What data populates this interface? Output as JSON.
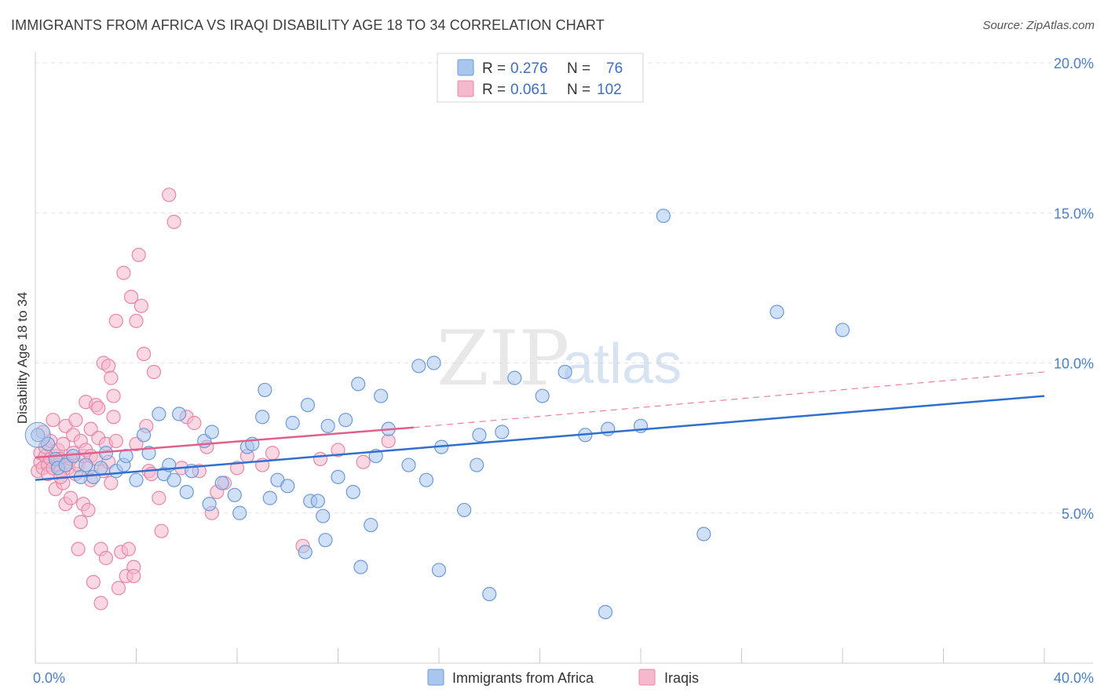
{
  "header": {
    "title": "IMMIGRANTS FROM AFRICA VS IRAQI DISABILITY AGE 18 TO 34 CORRELATION CHART",
    "source": "Source: ZipAtlas.com"
  },
  "watermark": {
    "zip": "ZIP",
    "atlas": "atlas"
  },
  "legend_top": {
    "rows": [
      {
        "r_label": "R =",
        "r_value": "0.276",
        "n_label": "N =",
        "n_value": "76"
      },
      {
        "r_label": "R =",
        "r_value": "0.061",
        "n_label": "N =",
        "n_value": "102"
      }
    ]
  },
  "colors": {
    "blue_fill": "#a9c6ee",
    "blue_stroke": "#6c9ad8",
    "blue_line": "#2f6fcf",
    "pink_fill": "#f6b8cc",
    "pink_stroke": "#e986a6",
    "pink_line": "#e0608c",
    "grid": "#e3e3e3",
    "axis_text": "#4a7ec9"
  },
  "chart_data": {
    "type": "scatter",
    "xlabel": "",
    "ylabel": "Disability Age 18 to 34",
    "xlim": [
      0,
      40
    ],
    "ylim": [
      0,
      20
    ],
    "x_tick_labels": [
      "0.0%",
      "40.0%"
    ],
    "y_ticks": [
      5,
      10,
      15,
      20
    ],
    "y_tick_labels": [
      "5.0%",
      "10.0%",
      "15.0%",
      "20.0%"
    ],
    "grid": "horizontal dashed",
    "legend_placement": "top-center and bottom",
    "series": [
      {
        "name": "Immigrants from Africa",
        "color": "blue",
        "trend": {
          "x": [
            0,
            40
          ],
          "y": [
            6.1,
            8.9
          ],
          "style": "solid"
        },
        "points": [
          [
            0.1,
            7.6
          ],
          [
            0.5,
            7.3
          ],
          [
            0.8,
            6.8
          ],
          [
            0.9,
            6.5
          ],
          [
            1.2,
            6.6
          ],
          [
            1.5,
            6.9
          ],
          [
            1.8,
            6.2
          ],
          [
            2.0,
            6.6
          ],
          [
            2.3,
            6.2
          ],
          [
            2.6,
            6.5
          ],
          [
            2.8,
            7.0
          ],
          [
            3.2,
            6.4
          ],
          [
            3.5,
            6.6
          ],
          [
            3.6,
            6.9
          ],
          [
            4.0,
            6.1
          ],
          [
            4.3,
            7.6
          ],
          [
            4.5,
            7.0
          ],
          [
            4.9,
            8.3
          ],
          [
            5.1,
            6.3
          ],
          [
            5.3,
            6.6
          ],
          [
            5.5,
            6.1
          ],
          [
            5.7,
            8.3
          ],
          [
            6.0,
            5.7
          ],
          [
            6.2,
            6.4
          ],
          [
            6.7,
            7.4
          ],
          [
            6.9,
            5.3
          ],
          [
            7.0,
            7.7
          ],
          [
            7.4,
            6.0
          ],
          [
            7.9,
            5.6
          ],
          [
            8.1,
            5.0
          ],
          [
            8.4,
            7.2
          ],
          [
            8.6,
            7.3
          ],
          [
            9.0,
            8.2
          ],
          [
            9.1,
            9.1
          ],
          [
            9.6,
            6.1
          ],
          [
            10.0,
            5.9
          ],
          [
            10.2,
            8.0
          ],
          [
            10.8,
            8.6
          ],
          [
            10.9,
            5.4
          ],
          [
            11.2,
            5.4
          ],
          [
            11.4,
            4.9
          ],
          [
            11.6,
            7.9
          ],
          [
            12.0,
            6.2
          ],
          [
            12.3,
            8.1
          ],
          [
            12.6,
            5.7
          ],
          [
            12.8,
            9.3
          ],
          [
            12.9,
            3.2
          ],
          [
            13.3,
            4.6
          ],
          [
            13.5,
            6.9
          ],
          [
            13.7,
            8.9
          ],
          [
            14.0,
            7.8
          ],
          [
            14.8,
            6.6
          ],
          [
            15.2,
            9.9
          ],
          [
            15.8,
            10.0
          ],
          [
            16.0,
            3.1
          ],
          [
            16.1,
            7.2
          ],
          [
            17.0,
            5.1
          ],
          [
            17.5,
            6.6
          ],
          [
            17.6,
            7.6
          ],
          [
            18.0,
            2.3
          ],
          [
            19.0,
            9.5
          ],
          [
            20.1,
            8.9
          ],
          [
            21.0,
            9.7
          ],
          [
            21.8,
            7.6
          ],
          [
            22.6,
            1.7
          ],
          [
            24.0,
            7.9
          ],
          [
            24.9,
            14.9
          ],
          [
            26.5,
            4.3
          ],
          [
            29.4,
            11.7
          ],
          [
            32.0,
            11.1
          ],
          [
            10.7,
            3.7
          ],
          [
            11.5,
            4.1
          ],
          [
            9.3,
            5.5
          ],
          [
            18.5,
            7.7
          ],
          [
            15.5,
            6.1
          ],
          [
            22.7,
            7.8
          ]
        ]
      },
      {
        "name": "Iraqis",
        "color": "pink",
        "trend": {
          "x": [
            0,
            15
          ],
          "y": [
            6.85,
            7.85
          ],
          "style": "solid",
          "extended": {
            "x": [
              15,
              40
            ],
            "y": [
              7.85,
              9.7
            ],
            "style": "dashed"
          }
        },
        "points": [
          [
            0.1,
            6.4
          ],
          [
            0.2,
            6.7
          ],
          [
            0.2,
            7.0
          ],
          [
            0.3,
            6.5
          ],
          [
            0.4,
            6.9
          ],
          [
            0.4,
            7.2
          ],
          [
            0.5,
            6.6
          ],
          [
            0.5,
            6.3
          ],
          [
            0.6,
            6.8
          ],
          [
            0.6,
            7.4
          ],
          [
            0.7,
            6.5
          ],
          [
            0.7,
            8.1
          ],
          [
            0.8,
            6.9
          ],
          [
            0.8,
            5.8
          ],
          [
            0.9,
            6.6
          ],
          [
            0.9,
            7.1
          ],
          [
            1.0,
            6.8
          ],
          [
            1.0,
            6.4
          ],
          [
            1.1,
            7.3
          ],
          [
            1.1,
            6.0
          ],
          [
            1.2,
            5.3
          ],
          [
            1.2,
            7.9
          ],
          [
            1.3,
            6.7
          ],
          [
            1.3,
            6.5
          ],
          [
            1.4,
            6.8
          ],
          [
            1.4,
            5.5
          ],
          [
            1.5,
            7.0
          ],
          [
            1.5,
            7.6
          ],
          [
            1.6,
            6.3
          ],
          [
            1.6,
            8.1
          ],
          [
            1.7,
            6.6
          ],
          [
            1.7,
            3.8
          ],
          [
            1.8,
            7.4
          ],
          [
            1.8,
            4.7
          ],
          [
            1.9,
            6.9
          ],
          [
            1.9,
            5.3
          ],
          [
            2.0,
            7.1
          ],
          [
            2.0,
            8.7
          ],
          [
            2.1,
            6.5
          ],
          [
            2.1,
            5.1
          ],
          [
            2.2,
            7.8
          ],
          [
            2.2,
            6.9
          ],
          [
            2.3,
            2.7
          ],
          [
            2.4,
            8.6
          ],
          [
            2.4,
            6.8
          ],
          [
            2.5,
            7.5
          ],
          [
            2.5,
            8.5
          ],
          [
            2.6,
            2.0
          ],
          [
            2.6,
            3.8
          ],
          [
            2.7,
            6.4
          ],
          [
            2.7,
            10.0
          ],
          [
            2.8,
            7.3
          ],
          [
            2.8,
            3.5
          ],
          [
            2.9,
            6.7
          ],
          [
            2.9,
            9.9
          ],
          [
            3.0,
            6.0
          ],
          [
            3.0,
            9.5
          ],
          [
            3.1,
            8.9
          ],
          [
            3.1,
            8.2
          ],
          [
            3.2,
            7.4
          ],
          [
            3.2,
            11.4
          ],
          [
            3.3,
            2.5
          ],
          [
            3.4,
            3.7
          ],
          [
            3.5,
            13.0
          ],
          [
            3.6,
            2.9
          ],
          [
            3.7,
            3.8
          ],
          [
            3.8,
            12.2
          ],
          [
            3.9,
            3.2
          ],
          [
            3.9,
            2.9
          ],
          [
            4.0,
            11.4
          ],
          [
            4.0,
            7.3
          ],
          [
            4.1,
            13.6
          ],
          [
            4.2,
            11.9
          ],
          [
            4.3,
            10.3
          ],
          [
            4.4,
            7.9
          ],
          [
            4.5,
            6.4
          ],
          [
            4.7,
            9.7
          ],
          [
            4.9,
            5.5
          ],
          [
            5.0,
            4.4
          ],
          [
            5.3,
            15.6
          ],
          [
            5.5,
            14.7
          ],
          [
            5.8,
            6.5
          ],
          [
            6.0,
            8.2
          ],
          [
            6.3,
            8.0
          ],
          [
            6.5,
            6.4
          ],
          [
            6.8,
            7.2
          ],
          [
            7.0,
            5.0
          ],
          [
            7.2,
            5.7
          ],
          [
            7.5,
            6.0
          ],
          [
            8.0,
            6.5
          ],
          [
            8.4,
            6.9
          ],
          [
            9.0,
            6.6
          ],
          [
            9.4,
            7.0
          ],
          [
            10.6,
            3.9
          ],
          [
            11.3,
            6.8
          ],
          [
            12.0,
            7.1
          ],
          [
            13.0,
            6.7
          ],
          [
            14.0,
            7.4
          ],
          [
            0.3,
            7.7
          ],
          [
            1.0,
            6.2
          ],
          [
            2.2,
            6.1
          ],
          [
            4.6,
            6.3
          ]
        ]
      }
    ]
  },
  "legend_bottom": {
    "items": [
      {
        "label": "Immigrants from Africa"
      },
      {
        "label": "Iraqis"
      }
    ]
  }
}
